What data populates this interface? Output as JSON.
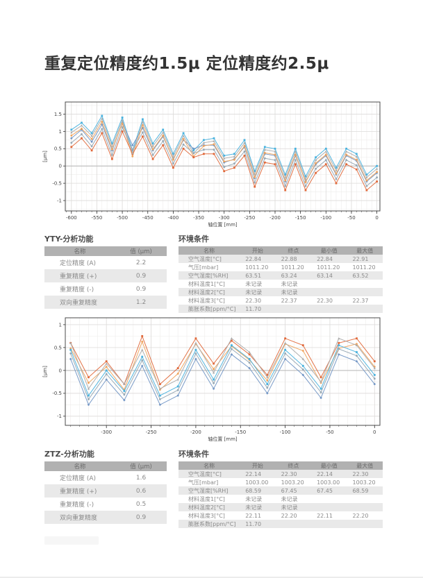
{
  "page": {
    "title": "重复定位精度约1.5μ 定位精度约2.5μ"
  },
  "analysis_tables": [
    {
      "title": "YTY-分析功能",
      "headers": [
        "名称",
        "值 (μm)"
      ],
      "rows": [
        [
          "定位精度 (A)",
          "2.2"
        ],
        [
          "重复精度 (+)",
          "0.9"
        ],
        [
          "重复精度 (-)",
          "0.9"
        ],
        [
          "双向重复精度",
          "1.2"
        ]
      ]
    },
    {
      "title": "ZTZ-分析功能",
      "headers": [
        "名称",
        "值 (μm)"
      ],
      "rows": [
        [
          "定位精度 (A)",
          "1.6"
        ],
        [
          "重复精度 (+)",
          "0.6"
        ],
        [
          "重复精度 (-)",
          "0.5"
        ],
        [
          "双向重复精度",
          "0.9"
        ]
      ]
    }
  ],
  "environment_tables": [
    {
      "title": "环境条件",
      "headers": [
        "名称",
        "开始",
        "终点",
        "最小值",
        "最大值"
      ],
      "rows": [
        [
          "空气温度[°C]",
          "22.84",
          "22.88",
          "22.84",
          "22.91"
        ],
        [
          "气压[mbar]",
          "1011.20",
          "1011.20",
          "1011.20",
          "1011.20"
        ],
        [
          "空气湿度[%RH]",
          "63.51",
          "63.24",
          "63.14",
          "63.52"
        ],
        [
          "材料温度1[°C]",
          "未记录",
          "未记录",
          "",
          ""
        ],
        [
          "材料温度2[°C]",
          "未记录",
          "未记录",
          "",
          ""
        ],
        [
          "材料温度3[°C]",
          "22.30",
          "22.37",
          "22.30",
          "22.37"
        ],
        [
          "膨胀系数[ppm/°C]",
          "11.70",
          "",
          "",
          ""
        ]
      ]
    },
    {
      "title": "环境条件",
      "headers": [
        "名称",
        "开始",
        "终点",
        "最小值",
        "最大值"
      ],
      "rows": [
        [
          "空气温度[°C]",
          "22.14",
          "22.30",
          "22.14",
          "22.30"
        ],
        [
          "气压[mbar]",
          "1003.00",
          "1003.20",
          "1003.00",
          "1003.20"
        ],
        [
          "空气湿度[%RH]",
          "68.59",
          "67.45",
          "67.45",
          "68.59"
        ],
        [
          "材料温度1[°C]",
          "未记录",
          "未记录",
          "",
          ""
        ],
        [
          "材料温度2[°C]",
          "未记录",
          "未记录",
          "",
          ""
        ],
        [
          "材料温度3[°C]",
          "22.11",
          "22.20",
          "22.11",
          "22.20"
        ],
        [
          "膨胀系数[ppm/°C]",
          "11.70",
          "",
          "",
          ""
        ]
      ]
    }
  ],
  "chart_data": [
    {
      "type": "line",
      "name": "YTY-axis-position-accuracy",
      "title": "",
      "xlabel": "轴位置 [mm]",
      "ylabel": "[μm]",
      "xlim": [
        -612,
        6
      ],
      "ylim": [
        -1.3,
        1.85
      ],
      "xticks": [
        -600,
        -550,
        -500,
        -450,
        -400,
        -350,
        -300,
        -250,
        -200,
        -150,
        -100,
        -50,
        0
      ],
      "yticks": [
        -1,
        -0.5,
        0,
        0.5,
        1,
        1.5
      ],
      "xminor": 10,
      "yminor": 0.25,
      "grid": true,
      "legend": "none",
      "x": [
        -600,
        -580,
        -560,
        -540,
        -520,
        -500,
        -480,
        -460,
        -440,
        -420,
        -400,
        -380,
        -360,
        -340,
        -320,
        -300,
        -280,
        -260,
        -240,
        -220,
        -200,
        -180,
        -160,
        -140,
        -120,
        -100,
        -80,
        -60,
        -40,
        -20,
        0
      ],
      "series": [
        {
          "name": "run-1",
          "color": "#49b2de",
          "marker": "square",
          "values": [
            1.05,
            1.25,
            0.95,
            1.45,
            0.65,
            1.4,
            0.45,
            1.35,
            0.65,
            1.05,
            0.35,
            0.95,
            0.45,
            0.75,
            0.8,
            0.3,
            0.35,
            0.75,
            -0.15,
            0.55,
            0.5,
            -0.25,
            0.5,
            -0.3,
            0.25,
            0.5,
            -0.05,
            0.5,
            0.35,
            -0.25,
            0.0
          ]
        },
        {
          "name": "run-2",
          "color": "#7296c5",
          "marker": "diamond",
          "values": [
            0.8,
            1.05,
            0.7,
            1.2,
            0.45,
            1.25,
            0.6,
            1.1,
            0.45,
            0.85,
            0.2,
            0.75,
            0.5,
            0.6,
            0.6,
            0.1,
            0.2,
            0.55,
            -0.35,
            0.35,
            0.3,
            -0.45,
            0.3,
            -0.45,
            0.05,
            0.3,
            -0.25,
            0.3,
            0.15,
            -0.45,
            -0.2
          ]
        },
        {
          "name": "run-3",
          "color": "#f0a35b",
          "marker": "circle",
          "values": [
            0.88,
            1.08,
            0.78,
            1.28,
            0.48,
            1.23,
            0.28,
            1.18,
            0.48,
            0.88,
            0.18,
            0.78,
            0.28,
            0.58,
            0.63,
            0.13,
            0.18,
            0.58,
            -0.32,
            0.38,
            0.33,
            -0.42,
            0.33,
            -0.47,
            0.08,
            0.33,
            -0.22,
            0.33,
            0.18,
            -0.42,
            -0.17
          ]
        },
        {
          "name": "run-4",
          "color": "#e0693b",
          "marker": "square",
          "values": [
            0.55,
            0.8,
            0.45,
            0.95,
            0.2,
            1.0,
            0.35,
            0.85,
            0.2,
            0.6,
            -0.05,
            0.5,
            0.25,
            0.35,
            0.35,
            -0.15,
            -0.05,
            0.3,
            -0.6,
            0.1,
            0.05,
            -0.7,
            0.05,
            -0.7,
            -0.2,
            0.05,
            -0.5,
            0.05,
            -0.1,
            -0.7,
            -0.45
          ]
        },
        {
          "name": "run-5",
          "color": "#ababab",
          "marker": "triangle",
          "values": [
            0.97,
            1.17,
            0.87,
            1.37,
            0.57,
            1.32,
            0.37,
            1.27,
            0.57,
            0.97,
            0.27,
            0.87,
            0.37,
            0.67,
            0.72,
            0.22,
            0.27,
            0.67,
            -0.23,
            0.47,
            0.42,
            -0.33,
            0.42,
            -0.38,
            0.17,
            0.42,
            -0.13,
            0.42,
            0.27,
            -0.33,
            -0.08
          ]
        },
        {
          "name": "run-6",
          "color": "#95a7b3",
          "marker": "circle",
          "values": [
            0.67,
            0.92,
            0.57,
            1.07,
            0.32,
            1.12,
            0.47,
            0.97,
            0.32,
            0.72,
            0.07,
            0.62,
            0.37,
            0.47,
            0.47,
            -0.03,
            0.07,
            0.42,
            -0.48,
            0.22,
            0.17,
            -0.58,
            0.17,
            -0.58,
            -0.08,
            0.17,
            -0.38,
            0.17,
            0.02,
            -0.58,
            -0.33
          ]
        }
      ]
    },
    {
      "type": "line",
      "name": "ZTZ-axis-position-accuracy",
      "title": "",
      "xlabel": "轴位置 [mm]",
      "ylabel": "[μm]",
      "xlim": [
        -346,
        6
      ],
      "ylim": [
        -1.2,
        1.15
      ],
      "xticks": [
        -300,
        -250,
        -200,
        -150,
        -100,
        -50,
        0
      ],
      "yticks": [
        -1,
        -0.5,
        0,
        0.5,
        1
      ],
      "xminor": 10,
      "yminor": 0.25,
      "grid": true,
      "legend": "none",
      "x": [
        -340,
        -320,
        -300,
        -280,
        -260,
        -240,
        -220,
        -200,
        -180,
        -160,
        -140,
        -120,
        -100,
        -80,
        -60,
        -40,
        -20,
        0
      ],
      "series": [
        {
          "name": "run-1",
          "color": "#e0693b",
          "marker": "square",
          "values": [
            0.6,
            -0.15,
            0.2,
            -0.3,
            0.75,
            -0.3,
            0.05,
            0.7,
            0.15,
            0.65,
            0.35,
            -0.1,
            0.7,
            0.55,
            -0.15,
            0.6,
            0.7,
            0.2
          ]
        },
        {
          "name": "run-2",
          "color": "#f0a35b",
          "marker": "circle",
          "values": [
            0.48,
            -0.27,
            0.08,
            -0.42,
            0.63,
            -0.42,
            -0.07,
            0.58,
            0.03,
            0.53,
            0.23,
            -0.22,
            0.58,
            0.43,
            -0.27,
            0.48,
            0.58,
            0.08
          ]
        },
        {
          "name": "run-3",
          "color": "#ababab",
          "marker": "triangle",
          "values": [
            0.6,
            -0.4,
            0.15,
            -0.3,
            0.45,
            -0.4,
            -0.2,
            0.6,
            -0.05,
            0.7,
            0.4,
            -0.15,
            0.6,
            0.25,
            -0.25,
            0.7,
            0.55,
            0.05
          ]
        },
        {
          "name": "run-4",
          "color": "#49b2de",
          "marker": "square",
          "values": [
            0.45,
            -0.55,
            0.0,
            -0.45,
            0.3,
            -0.55,
            -0.35,
            0.45,
            -0.2,
            0.55,
            0.25,
            -0.3,
            0.45,
            0.1,
            -0.4,
            0.55,
            0.4,
            -0.1
          ]
        },
        {
          "name": "run-5",
          "color": "#7296c5",
          "marker": "diamond",
          "values": [
            0.25,
            -0.75,
            -0.2,
            -0.65,
            0.1,
            -0.75,
            -0.55,
            0.25,
            -0.4,
            0.35,
            0.05,
            -0.5,
            0.25,
            -0.1,
            -0.6,
            0.35,
            0.2,
            -0.3
          ]
        },
        {
          "name": "run-6",
          "color": "#95a7b3",
          "marker": "circle",
          "values": [
            0.37,
            -0.63,
            -0.08,
            -0.53,
            0.22,
            -0.63,
            -0.43,
            0.37,
            -0.28,
            0.47,
            0.17,
            -0.38,
            0.37,
            0.02,
            -0.48,
            0.47,
            0.32,
            -0.18
          ]
        }
      ]
    }
  ]
}
